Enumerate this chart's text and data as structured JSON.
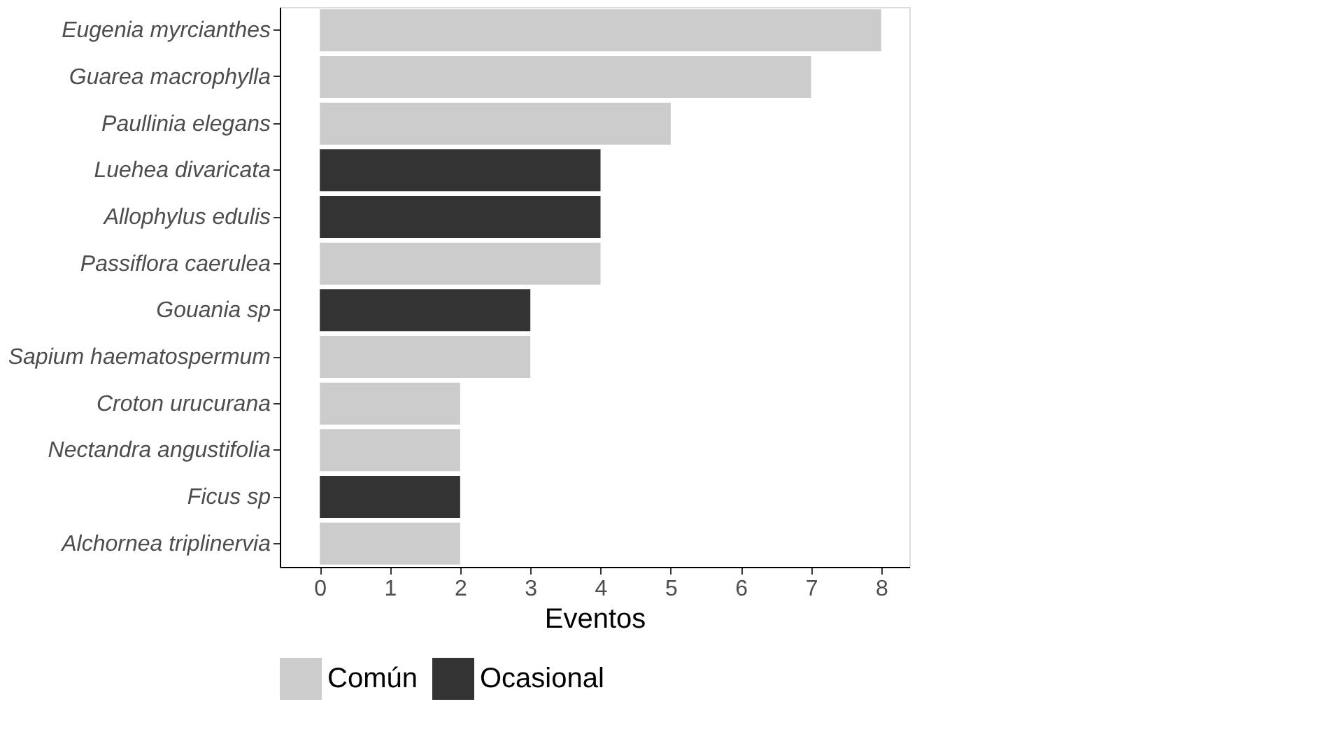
{
  "chart_data": {
    "type": "bar",
    "orientation": "horizontal",
    "xlabel": "Eventos",
    "categories": [
      "Eugenia myrcianthes",
      "Guarea macrophylla",
      "Paullinia elegans",
      "Luehea divaricata",
      "Allophylus edulis",
      "Passiflora caerulea",
      "Gouania sp",
      "Sapium haematospermum",
      "Croton urucurana",
      "Nectandra angustifolia",
      "Ficus sp",
      "Alchornea triplinervia"
    ],
    "series": [
      {
        "name": "Común",
        "color": "#cccccc",
        "values": [
          8,
          7,
          5,
          null,
          null,
          4,
          null,
          3,
          2,
          2,
          null,
          2
        ]
      },
      {
        "name": "Ocasional",
        "color": "#333333",
        "values": [
          null,
          null,
          null,
          4,
          4,
          null,
          3,
          null,
          null,
          null,
          2,
          null
        ]
      }
    ],
    "xlim": [
      -0.57,
      8.4
    ],
    "xticks": [
      0,
      1,
      2,
      3,
      4,
      5,
      6,
      7,
      8
    ],
    "grid": false,
    "legend": "bottom"
  }
}
